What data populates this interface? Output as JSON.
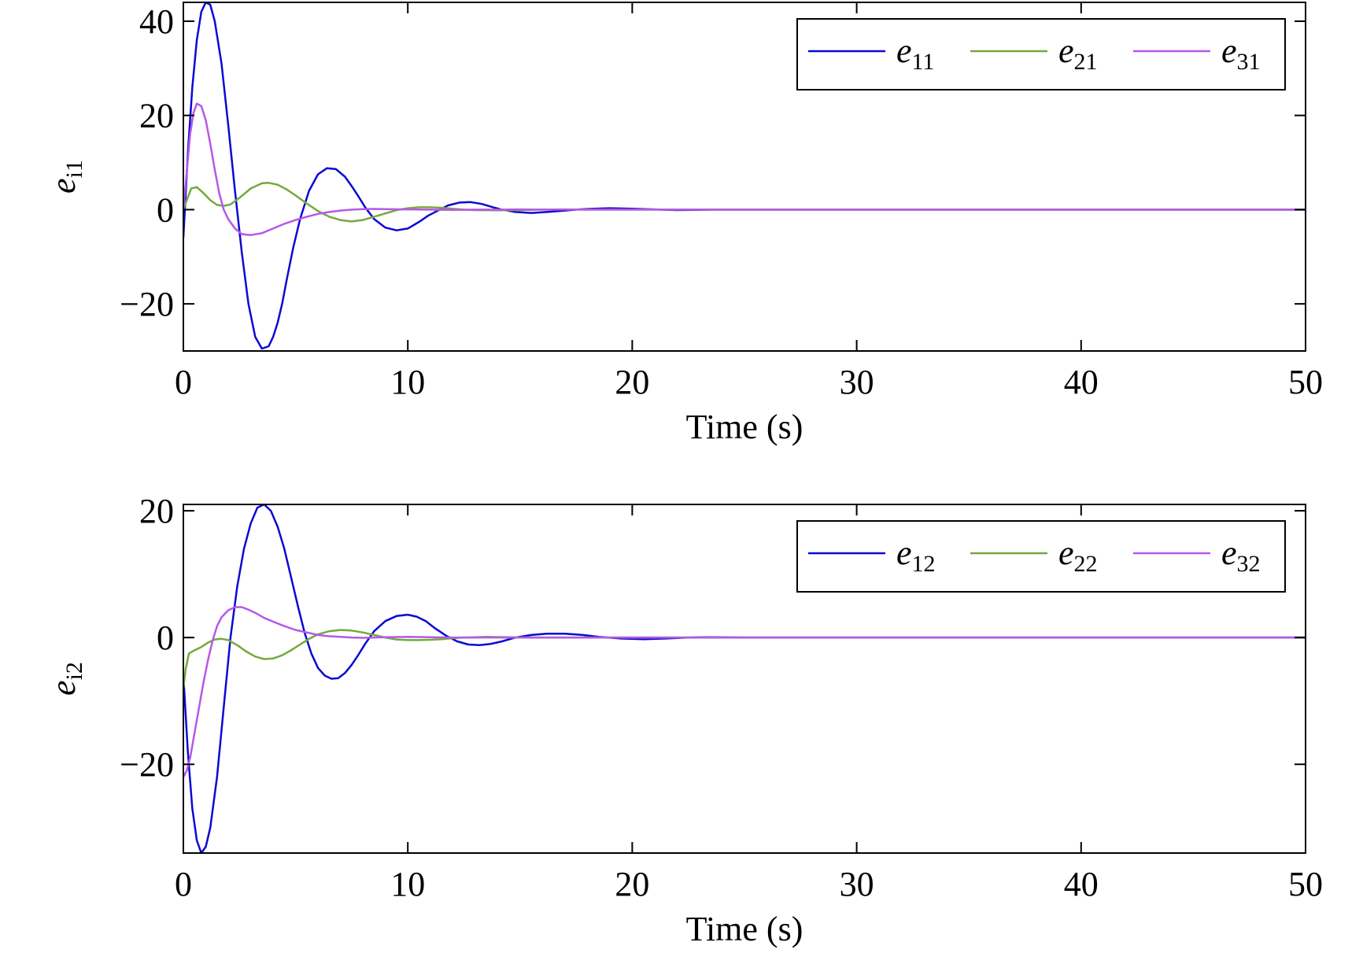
{
  "colors": {
    "blue": "#0a0ad2",
    "green": "#76a83e",
    "purple": "#b658e8",
    "axis": "#000000"
  },
  "chart_data": [
    {
      "type": "line",
      "xlabel": "Time (s)",
      "ylabel_base": "e",
      "ylabel_sub": "i1",
      "xlim": [
        0,
        50
      ],
      "ylim": [
        -30,
        44
      ],
      "xticks": [
        0,
        10,
        20,
        30,
        40,
        50
      ],
      "xtick_labels": [
        "0",
        "10",
        "20",
        "30",
        "40",
        "50"
      ],
      "yticks": [
        -20,
        0,
        20,
        40
      ],
      "ytick_labels": [
        "−20",
        "0",
        "20",
        "40"
      ],
      "grid": false,
      "legend_position": "top-right",
      "series": [
        {
          "name": "e11",
          "label_base": "e",
          "label_sub": "11",
          "color_key": "blue",
          "x": [
            0,
            0.2,
            0.4,
            0.6,
            0.8,
            1.0,
            1.2,
            1.4,
            1.7,
            2.0,
            2.3,
            2.6,
            2.9,
            3.2,
            3.5,
            3.8,
            4.0,
            4.2,
            4.4,
            4.6,
            4.9,
            5.2,
            5.6,
            6.0,
            6.4,
            6.8,
            7.2,
            7.5,
            7.8,
            8.1,
            8.5,
            9.0,
            9.5,
            10.0,
            10.5,
            10.9,
            11.3,
            11.8,
            12.3,
            12.8,
            13.3,
            13.8,
            14.2,
            14.8,
            15.5,
            16.2,
            17.0,
            17.6,
            18.3,
            19.0,
            20.0,
            21.0,
            22.0,
            23.5,
            25,
            30,
            35,
            40,
            45,
            50
          ],
          "y": [
            -6,
            12,
            26,
            36,
            42,
            44,
            43.5,
            40,
            31,
            18,
            4,
            -9,
            -20,
            -27,
            -29.5,
            -29,
            -27,
            -24,
            -20,
            -15,
            -8,
            -2,
            4,
            7.5,
            8.8,
            8.6,
            7,
            5,
            2.8,
            0.5,
            -2,
            -3.8,
            -4.4,
            -4,
            -2.6,
            -1.3,
            -0.3,
            0.9,
            1.5,
            1.6,
            1.2,
            0.5,
            0,
            -0.5,
            -0.7,
            -0.5,
            -0.2,
            0.05,
            0.2,
            0.3,
            0.2,
            0.05,
            -0.1,
            0,
            0,
            0,
            0,
            0,
            0,
            0
          ]
        },
        {
          "name": "e21",
          "label_base": "e",
          "label_sub": "21",
          "color_key": "green",
          "x": [
            0,
            0.15,
            0.35,
            0.6,
            0.9,
            1.2,
            1.5,
            1.8,
            2.1,
            2.5,
            3.0,
            3.5,
            3.8,
            4.2,
            4.6,
            5.0,
            5.5,
            6.0,
            6.5,
            7.0,
            7.5,
            8.0,
            8.5,
            9.0,
            9.5,
            10.0,
            10.5,
            11.0,
            11.5,
            12.0,
            12.5,
            13.0,
            14.0,
            15.0,
            16.0,
            17.0,
            18.0,
            20,
            25,
            30,
            35,
            40,
            45,
            50
          ],
          "y": [
            0,
            2,
            4.5,
            4.8,
            3.5,
            2,
            1,
            0.8,
            1.1,
            2.5,
            4.5,
            5.6,
            5.7,
            5.3,
            4.3,
            3,
            1.3,
            -0.3,
            -1.5,
            -2.2,
            -2.5,
            -2.2,
            -1.5,
            -0.8,
            -0.1,
            0.3,
            0.5,
            0.5,
            0.4,
            0.2,
            0,
            -0.1,
            -0.15,
            -0.1,
            0,
            0.05,
            0,
            0,
            0,
            0,
            0,
            0,
            0,
            0
          ]
        },
        {
          "name": "e31",
          "label_base": "e",
          "label_sub": "31",
          "color_key": "purple",
          "x": [
            0,
            0.15,
            0.3,
            0.45,
            0.6,
            0.8,
            1.0,
            1.2,
            1.4,
            1.6,
            1.8,
            2.0,
            2.3,
            2.6,
            3.0,
            3.5,
            4.0,
            4.5,
            5.0,
            5.5,
            6.0,
            6.5,
            7.0,
            7.5,
            8.0,
            8.5,
            9.0,
            10.0,
            11.0,
            12.0,
            13.0,
            14.0,
            15.0,
            16.0,
            18.0,
            20,
            25,
            30,
            35,
            40,
            45,
            50
          ],
          "y": [
            0,
            8,
            16,
            20.5,
            22.5,
            22,
            19,
            14,
            8.5,
            3.5,
            0,
            -2,
            -4,
            -5.2,
            -5.4,
            -5,
            -4,
            -3,
            -2.2,
            -1.5,
            -0.9,
            -0.5,
            -0.2,
            0,
            0.1,
            0.15,
            0.1,
            0.05,
            0,
            -0.05,
            0,
            0,
            0.05,
            0,
            0,
            0,
            0,
            0,
            0,
            0,
            0,
            0
          ]
        }
      ]
    },
    {
      "type": "line",
      "xlabel": "Time (s)",
      "ylabel_base": "e",
      "ylabel_sub": "i2",
      "xlim": [
        0,
        50
      ],
      "ylim": [
        -34,
        21
      ],
      "xticks": [
        0,
        10,
        20,
        30,
        40,
        50
      ],
      "xtick_labels": [
        "0",
        "10",
        "20",
        "30",
        "40",
        "50"
      ],
      "yticks": [
        -20,
        0,
        20
      ],
      "ytick_labels": [
        "−20",
        "0",
        "20"
      ],
      "grid": false,
      "legend_position": "top-right",
      "series": [
        {
          "name": "e12",
          "label_base": "e",
          "label_sub": "12",
          "color_key": "blue",
          "x": [
            0,
            0.2,
            0.4,
            0.6,
            0.8,
            1.0,
            1.2,
            1.5,
            1.8,
            2.1,
            2.4,
            2.7,
            3.0,
            3.3,
            3.6,
            3.9,
            4.2,
            4.5,
            4.8,
            5.1,
            5.4,
            5.7,
            6.0,
            6.3,
            6.6,
            6.9,
            7.2,
            7.5,
            7.8,
            8.1,
            8.5,
            9.0,
            9.5,
            10.0,
            10.4,
            10.8,
            11.2,
            11.7,
            12.2,
            12.7,
            13.2,
            13.7,
            14.2,
            14.8,
            15.5,
            16.2,
            17.0,
            17.8,
            18.5,
            19.5,
            20.5,
            21.5,
            22.5,
            23.5,
            25,
            30,
            35,
            40,
            45,
            50
          ],
          "y": [
            -6,
            -18,
            -27,
            -32,
            -34,
            -33,
            -30,
            -22,
            -11,
            0,
            8,
            14,
            18,
            20.5,
            21,
            20,
            17.5,
            14,
            9.5,
            5,
            0.8,
            -2.5,
            -4.8,
            -6,
            -6.5,
            -6.4,
            -5.6,
            -4.3,
            -2.7,
            -1,
            1,
            2.6,
            3.4,
            3.6,
            3.3,
            2.6,
            1.5,
            0.3,
            -0.6,
            -1.1,
            -1.2,
            -1,
            -0.6,
            0,
            0.4,
            0.6,
            0.6,
            0.4,
            0.1,
            -0.15,
            -0.25,
            -0.15,
            0,
            0.05,
            0,
            0,
            0,
            0,
            0,
            0
          ]
        },
        {
          "name": "e22",
          "label_base": "e",
          "label_sub": "22",
          "color_key": "green",
          "x": [
            0,
            0.1,
            0.25,
            0.5,
            0.8,
            1.1,
            1.4,
            1.7,
            2.0,
            2.4,
            2.8,
            3.2,
            3.6,
            4.0,
            4.4,
            4.8,
            5.2,
            5.6,
            6.0,
            6.5,
            7.0,
            7.5,
            8.0,
            8.5,
            9.0,
            9.5,
            10.0,
            10.5,
            11.0,
            11.5,
            12.0,
            12.5,
            13.0,
            13.5,
            14.0,
            15.0,
            16.0,
            17.0,
            18.0,
            20,
            25,
            30,
            35,
            40,
            45,
            50
          ],
          "y": [
            -8,
            -5,
            -2.5,
            -2,
            -1.5,
            -0.8,
            -0.3,
            -0.2,
            -0.4,
            -1.2,
            -2.2,
            -3,
            -3.4,
            -3.3,
            -2.8,
            -2,
            -1.1,
            -0.2,
            0.5,
            1,
            1.2,
            1.1,
            0.8,
            0.4,
            0,
            -0.3,
            -0.4,
            -0.4,
            -0.35,
            -0.25,
            -0.1,
            0,
            0.05,
            0.1,
            0.08,
            0.02,
            0,
            0,
            0,
            0,
            0,
            0,
            0,
            0,
            0,
            0
          ]
        },
        {
          "name": "e32",
          "label_base": "e",
          "label_sub": "32",
          "color_key": "purple",
          "x": [
            0,
            0.15,
            0.3,
            0.5,
            0.7,
            0.9,
            1.1,
            1.3,
            1.5,
            1.7,
            2.0,
            2.3,
            2.6,
            2.9,
            3.2,
            3.6,
            4.0,
            4.5,
            5.0,
            5.5,
            6.0,
            6.5,
            7.0,
            7.5,
            8.0,
            8.5,
            9.0,
            10.0,
            11.0,
            12.0,
            13.0,
            14.0,
            15.0,
            16.0,
            18.0,
            20,
            25,
            30,
            35,
            40,
            45,
            50
          ],
          "y": [
            -22,
            -21,
            -19,
            -15,
            -11,
            -7,
            -3.5,
            -0.5,
            1.8,
            3.2,
            4.3,
            4.8,
            4.8,
            4.4,
            3.9,
            3.1,
            2.5,
            1.8,
            1.2,
            0.8,
            0.4,
            0.2,
            0.1,
            0,
            -0.05,
            0,
            0.05,
            0.1,
            0.05,
            0,
            0,
            0,
            0,
            0,
            0,
            0,
            0,
            0,
            0,
            0,
            0,
            0
          ]
        }
      ]
    }
  ]
}
